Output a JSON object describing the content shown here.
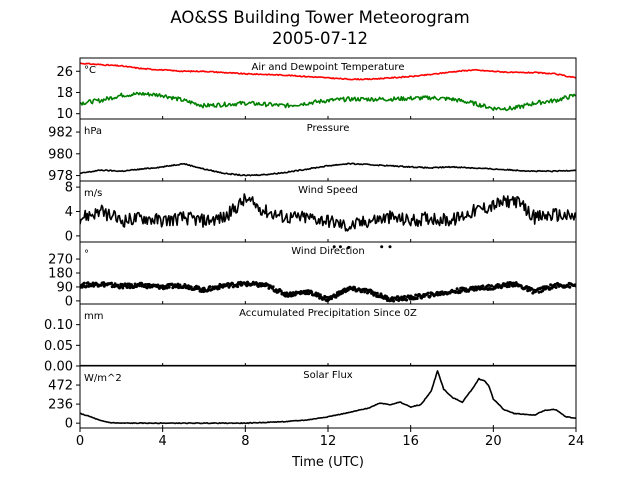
{
  "figure": {
    "title": "AO&SS Building Tower Meteorogram",
    "date": "2005-07-12",
    "xlabel": "Time (UTC)"
  },
  "colors": {
    "air_temp": "#ff0000",
    "dewpoint": "#008000",
    "line": "#000000"
  },
  "chart_data": [
    {
      "type": "line",
      "title": "Air and Dewpoint Temperature",
      "unit": "°C",
      "xlim": [
        0,
        24
      ],
      "ylim": [
        8,
        31
      ],
      "yticks": [
        "10",
        "18",
        "26"
      ],
      "ytick_values": [
        10,
        18,
        26
      ],
      "series": [
        {
          "key": "air",
          "x": [
            0,
            1,
            2,
            3,
            4,
            5,
            6,
            7,
            8,
            9,
            10,
            11,
            12,
            13,
            14,
            15,
            16,
            17,
            18,
            19,
            20,
            21,
            22,
            23,
            24
          ],
          "values": [
            29,
            28.5,
            28,
            27,
            26.5,
            26,
            26,
            25.5,
            25,
            24.8,
            24.5,
            24,
            23.5,
            23,
            23,
            23.5,
            24,
            24.8,
            25.8,
            26.5,
            26,
            25.5,
            25.5,
            25,
            23.5
          ]
        },
        {
          "key": "dewpoint",
          "x": [
            0,
            1,
            2,
            3,
            4,
            5,
            6,
            7,
            8,
            9,
            10,
            11,
            12,
            13,
            14,
            15,
            16,
            17,
            18,
            19,
            20,
            21,
            22,
            23,
            24
          ],
          "values": [
            14,
            15,
            17,
            17.5,
            17,
            15,
            13,
            13.5,
            14,
            13.5,
            13,
            14,
            15,
            15.5,
            15.5,
            15.5,
            15.8,
            16,
            15.5,
            14,
            12,
            12,
            14,
            15,
            17
          ]
        }
      ]
    },
    {
      "type": "line",
      "title": "Pressure",
      "unit": "hPa",
      "xlim": [
        0,
        24
      ],
      "ylim": [
        977.5,
        983.2
      ],
      "yticks": [
        "978",
        "980",
        "982"
      ],
      "ytick_values": [
        978,
        980,
        982
      ],
      "series": [
        {
          "key": "pressure",
          "x": [
            0,
            1,
            2,
            3,
            4,
            5,
            6,
            7,
            8,
            9,
            10,
            11,
            12,
            13,
            14,
            15,
            16,
            17,
            18,
            19,
            20,
            21,
            22,
            23,
            24
          ],
          "values": [
            978.2,
            978.5,
            978.4,
            978.6,
            978.8,
            979.1,
            978.6,
            978.2,
            978,
            978.1,
            978.3,
            978.6,
            978.9,
            979.1,
            979,
            978.9,
            978.8,
            978.7,
            978.8,
            978.7,
            978.6,
            978.5,
            978.4,
            978.4,
            978.5
          ]
        }
      ]
    },
    {
      "type": "line",
      "title": "Wind Speed",
      "unit": "m/s",
      "xlim": [
        0,
        24
      ],
      "ylim": [
        -1,
        9
      ],
      "yticks": [
        "0",
        "4",
        "8"
      ],
      "ytick_values": [
        0,
        4,
        8
      ],
      "series": [
        {
          "key": "wind_speed",
          "x": [
            0,
            1,
            2,
            3,
            4,
            5,
            6,
            7,
            8,
            9,
            10,
            11,
            12,
            13,
            14,
            15,
            16,
            17,
            18,
            19,
            20,
            21,
            22,
            23,
            24
          ],
          "values": [
            3,
            4,
            2.5,
            3,
            2.5,
            3,
            2.5,
            3,
            6,
            4,
            3,
            3,
            2.5,
            1.5,
            2.5,
            3,
            2.5,
            3,
            2.5,
            4,
            5,
            6,
            3,
            3.5,
            3
          ]
        }
      ]
    },
    {
      "type": "scatter",
      "title": "Wind Direction",
      "unit": "°",
      "xlim": [
        0,
        24
      ],
      "ylim": [
        -20,
        380
      ],
      "yticks": [
        "0",
        "90",
        "180",
        "270"
      ],
      "ytick_values": [
        0,
        90,
        180,
        270
      ],
      "series": [
        {
          "key": "wind_direction",
          "x": [
            0,
            1,
            2,
            3,
            4,
            5,
            6,
            7,
            8,
            9,
            10,
            11,
            12,
            13,
            14,
            15,
            16,
            17,
            18,
            19,
            20,
            21,
            22,
            23,
            24
          ],
          "values": [
            100,
            110,
            95,
            100,
            90,
            100,
            70,
            100,
            110,
            100,
            40,
            60,
            10,
            80,
            60,
            10,
            20,
            40,
            60,
            80,
            90,
            110,
            60,
            100,
            100
          ]
        },
        {
          "key": "wind_direction_high",
          "x": [
            12.3,
            12.6,
            13,
            14.6,
            15
          ],
          "values": [
            350,
            350,
            345,
            350,
            350
          ]
        }
      ]
    },
    {
      "type": "line",
      "title": "Accumulated Precipitation Since 0Z",
      "unit": "mm",
      "xlim": [
        0,
        24
      ],
      "ylim": [
        0,
        0.15
      ],
      "yticks": [
        "0.00",
        "0.05",
        "0.10"
      ],
      "ytick_values": [
        0,
        0.05,
        0.1
      ],
      "series": [
        {
          "key": "precip",
          "x": [
            0,
            24
          ],
          "values": [
            0,
            0
          ]
        }
      ]
    },
    {
      "type": "line",
      "title": "Solar Flux",
      "unit": "W/m^2",
      "xlim": [
        0,
        24
      ],
      "ylim": [
        -60,
        708
      ],
      "yticks": [
        "0",
        "236",
        "472"
      ],
      "ytick_values": [
        0,
        236,
        472
      ],
      "xticks": [
        "0",
        "4",
        "8",
        "12",
        "16",
        "20",
        "24"
      ],
      "xtick_values": [
        0,
        4,
        8,
        12,
        16,
        20,
        24
      ],
      "series": [
        {
          "key": "solar",
          "x": [
            0,
            0.5,
            1,
            1.5,
            2,
            4,
            8,
            10,
            11,
            12,
            13,
            14,
            14.5,
            15,
            15.5,
            16,
            16.5,
            17,
            17.3,
            17.6,
            18,
            18.5,
            19,
            19.3,
            19.6,
            19.8,
            20,
            20.5,
            21,
            22,
            22.5,
            23,
            23.5,
            24
          ],
          "values": [
            120,
            80,
            30,
            5,
            0,
            0,
            0,
            20,
            40,
            80,
            130,
            190,
            250,
            230,
            260,
            200,
            230,
            400,
            650,
            420,
            320,
            260,
            430,
            550,
            520,
            450,
            300,
            170,
            120,
            100,
            160,
            170,
            80,
            60
          ]
        }
      ]
    }
  ]
}
